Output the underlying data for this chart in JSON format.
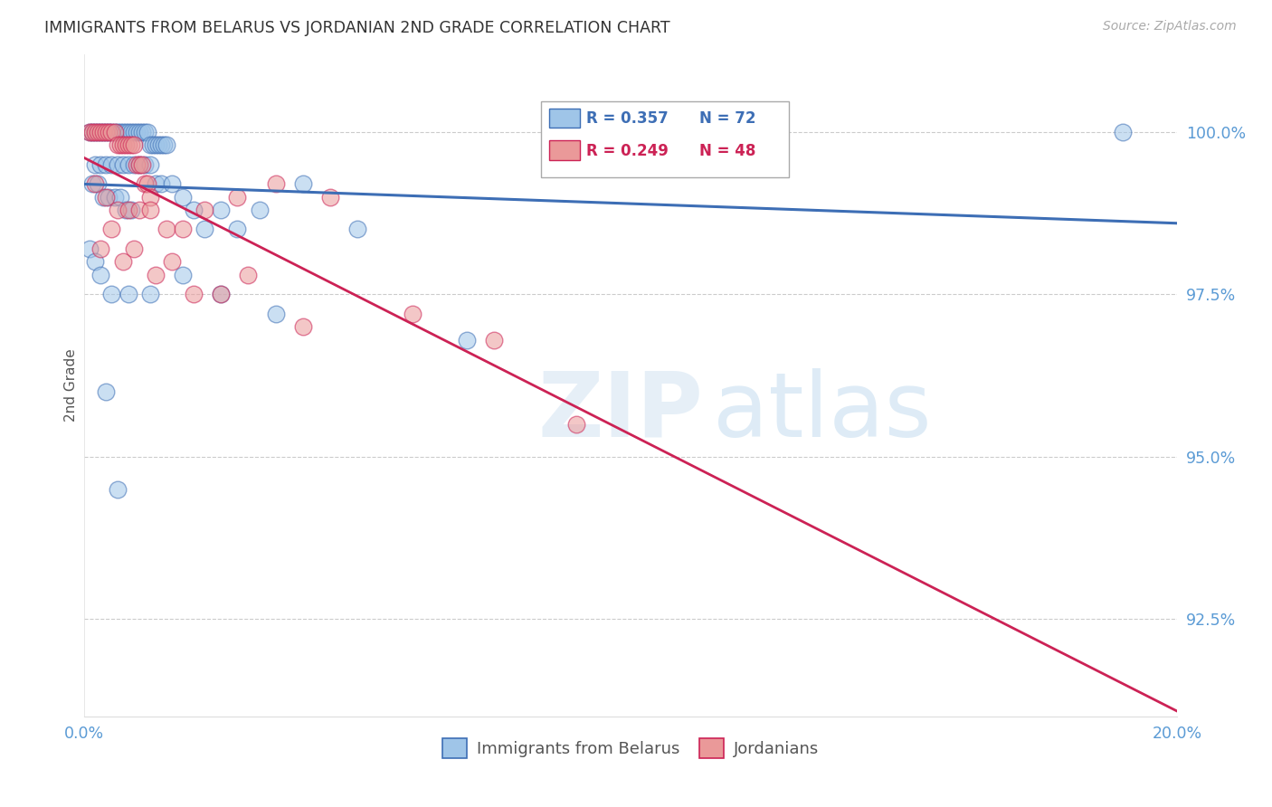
{
  "title": "IMMIGRANTS FROM BELARUS VS JORDANIAN 2ND GRADE CORRELATION CHART",
  "source": "Source: ZipAtlas.com",
  "ylabel": "2nd Grade",
  "xlim": [
    0.0,
    20.0
  ],
  "ylim": [
    91.0,
    101.2
  ],
  "yticks": [
    92.5,
    95.0,
    97.5,
    100.0
  ],
  "ytick_labels": [
    "92.5%",
    "95.0%",
    "97.5%",
    "100.0%"
  ],
  "xticks": [
    0.0,
    5.0,
    10.0,
    15.0,
    20.0
  ],
  "xtick_labels": [
    "0.0%",
    "",
    "",
    "",
    "20.0%"
  ],
  "legend_blue_label": "Immigrants from Belarus",
  "legend_pink_label": "Jordanians",
  "blue_color": "#9fc5e8",
  "pink_color": "#ea9999",
  "blue_line_color": "#3d6eb5",
  "pink_line_color": "#cc2255",
  "watermark_zip": "ZIP",
  "watermark_atlas": "atlas",
  "background_color": "#ffffff",
  "grid_color": "#cccccc",
  "tick_color": "#5b9bd5",
  "title_color": "#333333",
  "blue_scatter_x": [
    0.1,
    0.15,
    0.2,
    0.25,
    0.3,
    0.35,
    0.4,
    0.45,
    0.5,
    0.55,
    0.6,
    0.65,
    0.7,
    0.75,
    0.8,
    0.85,
    0.9,
    0.95,
    1.0,
    1.05,
    1.1,
    1.15,
    1.2,
    1.25,
    1.3,
    1.35,
    1.4,
    1.45,
    1.5,
    0.2,
    0.3,
    0.4,
    0.5,
    0.6,
    0.7,
    0.8,
    0.9,
    1.0,
    1.1,
    1.2,
    1.3,
    1.4,
    0.15,
    0.25,
    0.35,
    0.45,
    0.55,
    0.65,
    0.75,
    0.85,
    1.6,
    1.8,
    2.0,
    2.2,
    2.5,
    2.8,
    3.2,
    4.0,
    0.1,
    0.2,
    0.3,
    0.5,
    0.8,
    1.2,
    1.8,
    2.5,
    3.5,
    5.0,
    7.0,
    19.0,
    0.4,
    0.6
  ],
  "blue_scatter_y": [
    100.0,
    100.0,
    100.0,
    100.0,
    100.0,
    100.0,
    100.0,
    100.0,
    100.0,
    100.0,
    100.0,
    100.0,
    100.0,
    100.0,
    100.0,
    100.0,
    100.0,
    100.0,
    100.0,
    100.0,
    100.0,
    100.0,
    99.8,
    99.8,
    99.8,
    99.8,
    99.8,
    99.8,
    99.8,
    99.5,
    99.5,
    99.5,
    99.5,
    99.5,
    99.5,
    99.5,
    99.5,
    99.5,
    99.5,
    99.5,
    99.2,
    99.2,
    99.2,
    99.2,
    99.0,
    99.0,
    99.0,
    99.0,
    98.8,
    98.8,
    99.2,
    99.0,
    98.8,
    98.5,
    98.8,
    98.5,
    98.8,
    99.2,
    98.2,
    98.0,
    97.8,
    97.5,
    97.5,
    97.5,
    97.8,
    97.5,
    97.2,
    98.5,
    96.8,
    100.0,
    96.0,
    94.5
  ],
  "pink_scatter_x": [
    0.1,
    0.15,
    0.2,
    0.25,
    0.3,
    0.35,
    0.4,
    0.45,
    0.5,
    0.55,
    0.6,
    0.65,
    0.7,
    0.75,
    0.8,
    0.85,
    0.9,
    0.95,
    1.0,
    1.05,
    1.1,
    1.15,
    1.2,
    0.2,
    0.4,
    0.6,
    0.8,
    1.0,
    1.2,
    1.5,
    1.8,
    2.2,
    2.8,
    3.5,
    4.5,
    0.3,
    0.7,
    1.3,
    2.0,
    3.0,
    0.5,
    0.9,
    1.6,
    2.5,
    4.0,
    6.0,
    7.5,
    9.0
  ],
  "pink_scatter_y": [
    100.0,
    100.0,
    100.0,
    100.0,
    100.0,
    100.0,
    100.0,
    100.0,
    100.0,
    100.0,
    99.8,
    99.8,
    99.8,
    99.8,
    99.8,
    99.8,
    99.8,
    99.5,
    99.5,
    99.5,
    99.2,
    99.2,
    99.0,
    99.2,
    99.0,
    98.8,
    98.8,
    98.8,
    98.8,
    98.5,
    98.5,
    98.8,
    99.0,
    99.2,
    99.0,
    98.2,
    98.0,
    97.8,
    97.5,
    97.8,
    98.5,
    98.2,
    98.0,
    97.5,
    97.0,
    97.2,
    96.8,
    95.5
  ]
}
